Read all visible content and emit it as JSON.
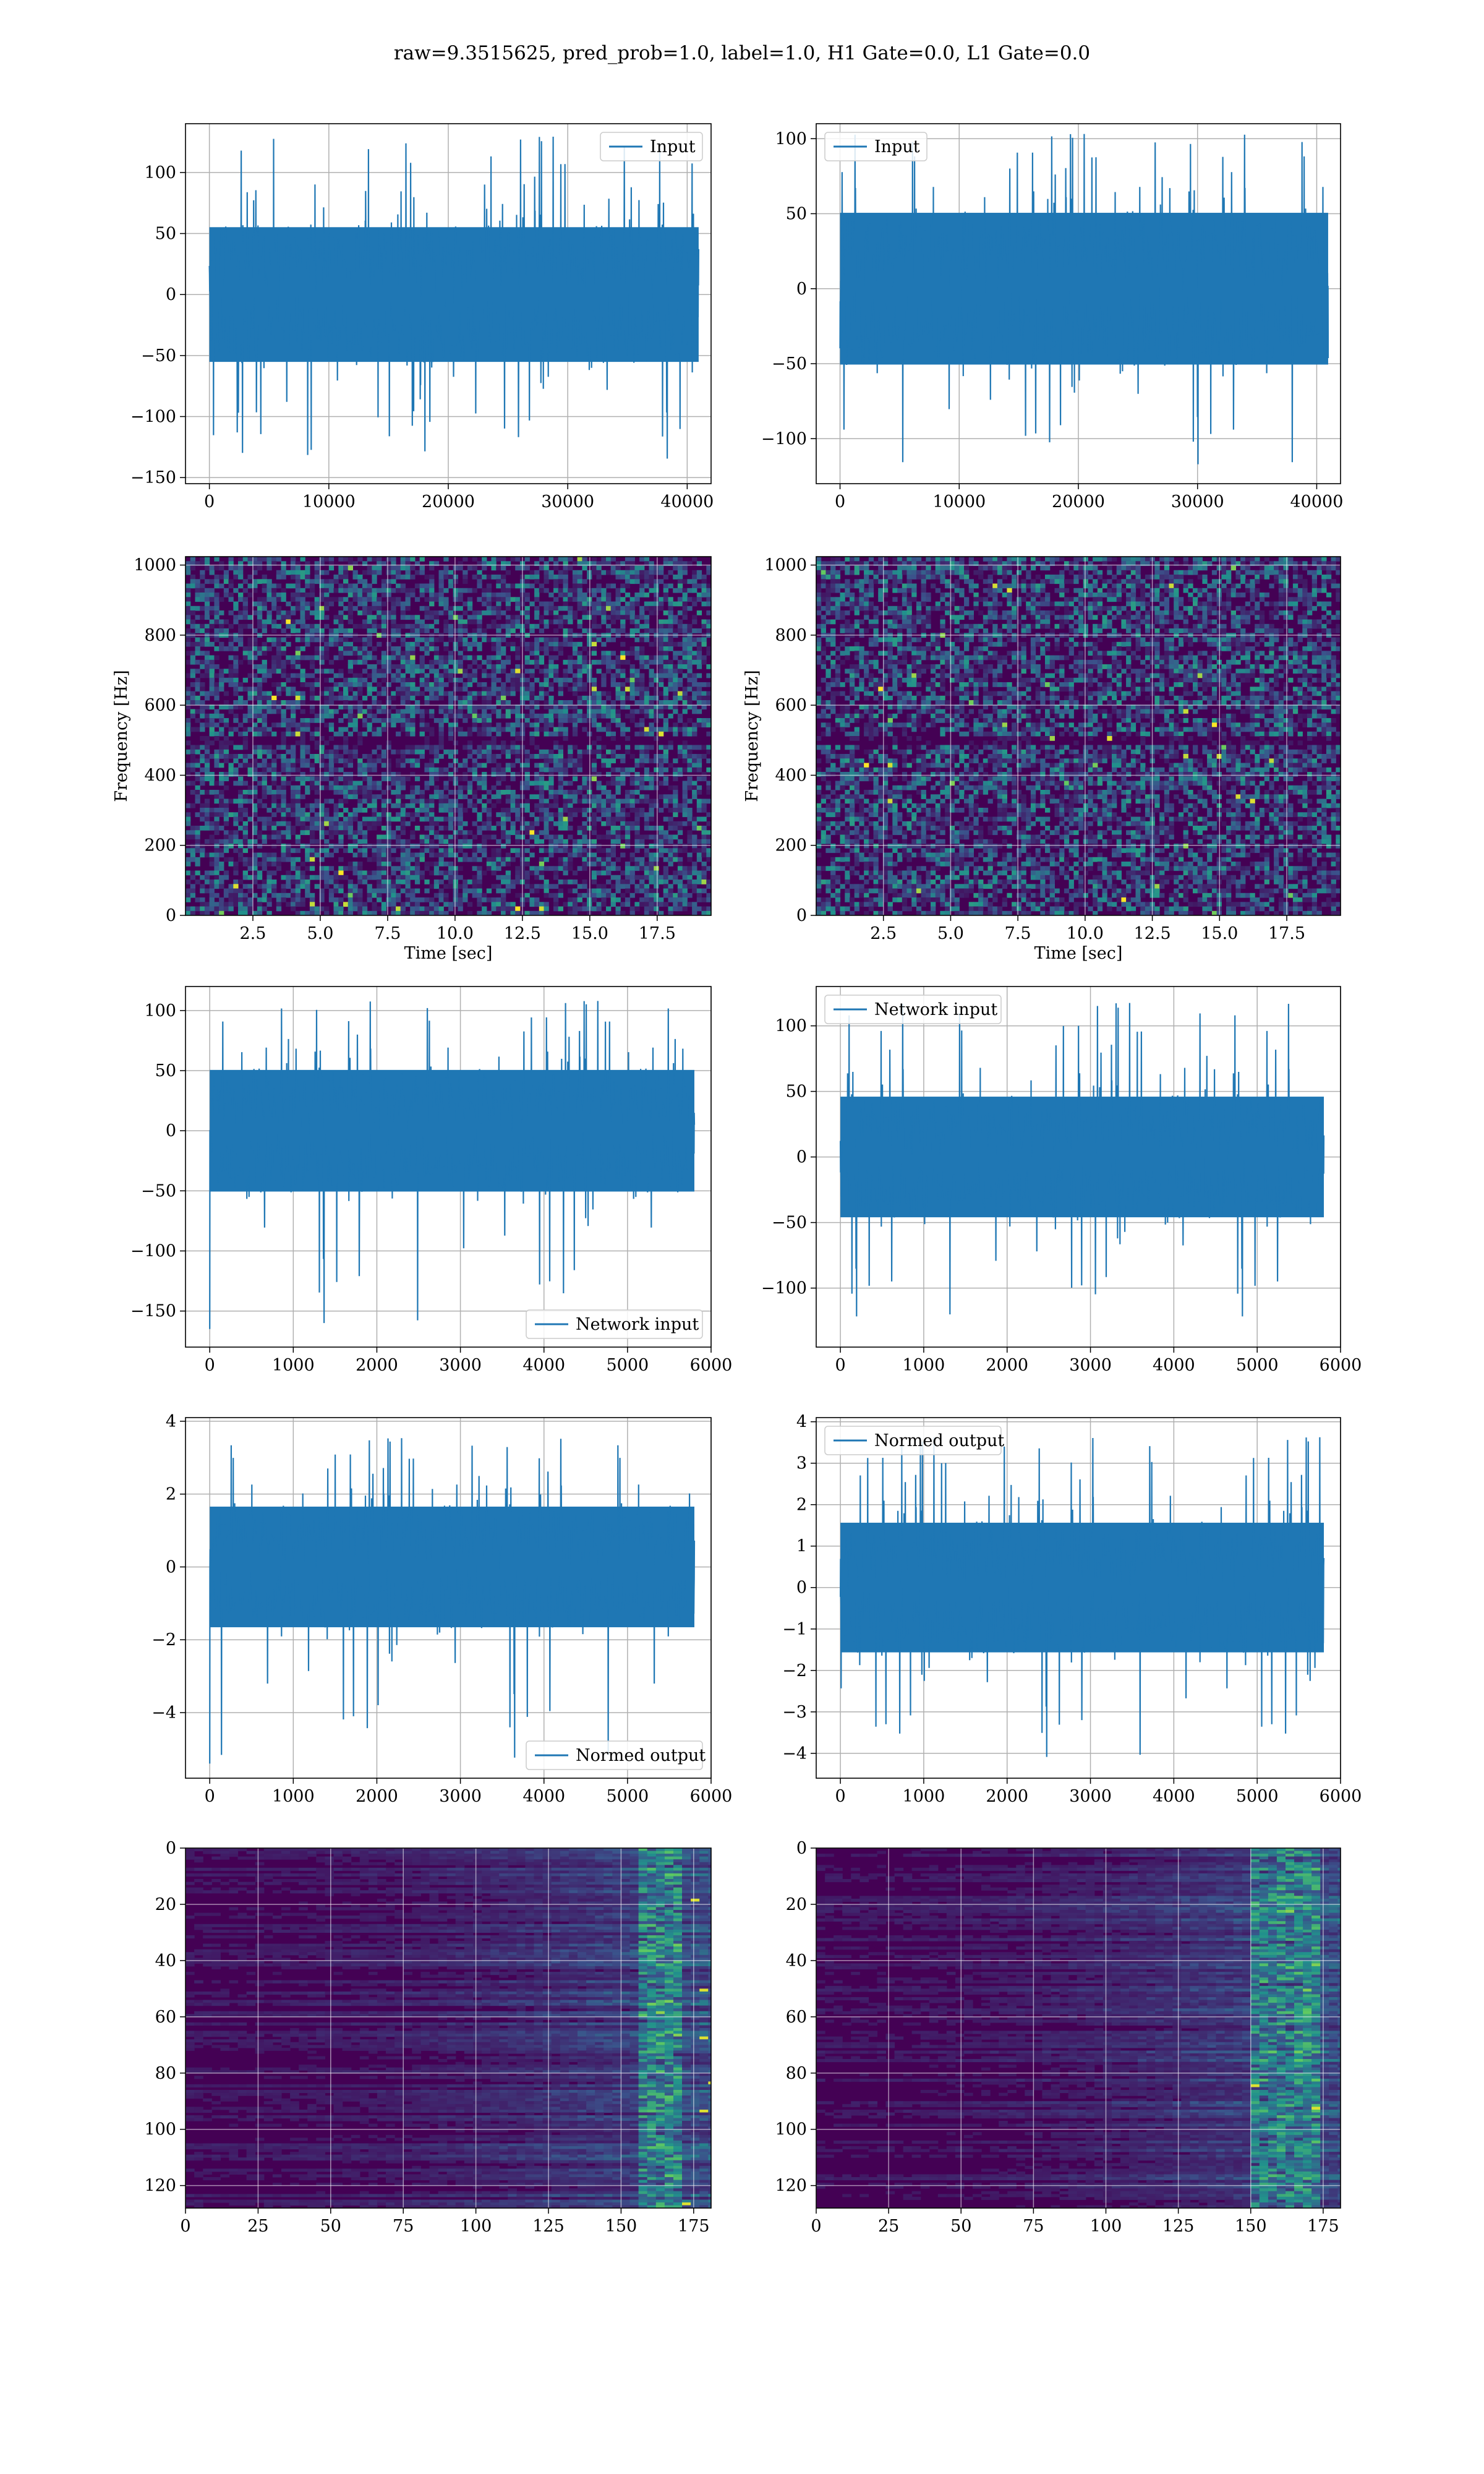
{
  "figure": {
    "suptitle": "raw=9.3515625, pred_prob=1.0, label=1.0, H1 Gate=0.0, L1 Gate=0.0"
  },
  "colors": {
    "line": "#1f77b4",
    "grid": "#b0b0b0",
    "viridis_low": "#440154",
    "viridis_mid": "#21918c",
    "viridis_high": "#fde725"
  },
  "chart_data": [
    {
      "id": "input-h1",
      "type": "line",
      "legend": "Input",
      "legend_loc": "upper right",
      "xlim": [
        -2000,
        42000
      ],
      "ylim": [
        -155,
        140
      ],
      "xticks": [
        0,
        10000,
        20000,
        30000,
        40000
      ],
      "xtick_labels": [
        "0",
        "10000",
        "20000",
        "30000",
        "40000"
      ],
      "yticks": [
        -150,
        -100,
        -50,
        0,
        50,
        100
      ],
      "ytick_labels": [
        "−150",
        "−100",
        "−50",
        "0",
        "50",
        "100"
      ],
      "x_range": [
        0,
        40960
      ],
      "band": [
        -60,
        60
      ],
      "extremes": [
        -138,
        132
      ],
      "grid": true
    },
    {
      "id": "input-l1",
      "type": "line",
      "legend": "Input",
      "legend_loc": "upper left",
      "xlim": [
        -2000,
        42000
      ],
      "ylim": [
        -130,
        110
      ],
      "xticks": [
        0,
        10000,
        20000,
        30000,
        40000
      ],
      "xtick_labels": [
        "0",
        "10000",
        "20000",
        "30000",
        "40000"
      ],
      "yticks": [
        -100,
        -50,
        0,
        50,
        100
      ],
      "ytick_labels": [
        "−100",
        "−50",
        "0",
        "50",
        "100"
      ],
      "x_range": [
        0,
        40960
      ],
      "band": [
        -55,
        55
      ],
      "extremes": [
        -120,
        105
      ],
      "grid": true
    },
    {
      "id": "spec-h1",
      "type": "heatmap",
      "ylabel": "Frequency [Hz]",
      "xlabel": "Time [sec]",
      "xlim": [
        0,
        19.5
      ],
      "ylim": [
        0,
        1024
      ],
      "xticks": [
        2.5,
        5.0,
        7.5,
        10.0,
        12.5,
        15.0,
        17.5
      ],
      "xtick_labels": [
        "2.5",
        "5.0",
        "7.5",
        "10.0",
        "12.5",
        "15.0",
        "17.5"
      ],
      "yticks": [
        0,
        200,
        400,
        600,
        800,
        1000
      ],
      "ytick_labels": [
        "0",
        "200",
        "400",
        "600",
        "800",
        "1000"
      ],
      "dark_band_hz": 500,
      "grid": true
    },
    {
      "id": "spec-l1",
      "type": "heatmap",
      "ylabel": "Frequency [Hz]",
      "xlabel": "Time [sec]",
      "xlim": [
        0,
        19.5
      ],
      "ylim": [
        0,
        1024
      ],
      "xticks": [
        2.5,
        5.0,
        7.5,
        10.0,
        12.5,
        15.0,
        17.5
      ],
      "xtick_labels": [
        "2.5",
        "5.0",
        "7.5",
        "10.0",
        "12.5",
        "15.0",
        "17.5"
      ],
      "yticks": [
        0,
        200,
        400,
        600,
        800,
        1000
      ],
      "ytick_labels": [
        "0",
        "200",
        "400",
        "600",
        "800",
        "1000"
      ],
      "dark_band_hz": 500,
      "grid": true
    },
    {
      "id": "net-h1",
      "type": "line",
      "legend": "Network input",
      "legend_loc": "lower right",
      "xlim": [
        -290,
        6000
      ],
      "ylim": [
        -180,
        120
      ],
      "xticks": [
        0,
        1000,
        2000,
        3000,
        4000,
        5000,
        6000
      ],
      "xtick_labels": [
        "0",
        "1000",
        "2000",
        "3000",
        "4000",
        "5000",
        "6000"
      ],
      "yticks": [
        -150,
        -100,
        -50,
        0,
        50,
        100
      ],
      "ytick_labels": [
        "−150",
        "−100",
        "−50",
        "0",
        "50",
        "100"
      ],
      "x_range": [
        0,
        5800
      ],
      "band": [
        -55,
        55
      ],
      "extremes": [
        -165,
        110
      ],
      "grid": true
    },
    {
      "id": "net-l1",
      "type": "line",
      "legend": "Network input",
      "legend_loc": "upper left",
      "xlim": [
        -290,
        6000
      ],
      "ylim": [
        -145,
        130
      ],
      "xticks": [
        0,
        1000,
        2000,
        3000,
        4000,
        5000,
        6000
      ],
      "xtick_labels": [
        "0",
        "1000",
        "2000",
        "3000",
        "4000",
        "5000",
        "6000"
      ],
      "yticks": [
        -100,
        -50,
        0,
        50,
        100
      ],
      "ytick_labels": [
        "−100",
        "−50",
        "0",
        "50",
        "100"
      ],
      "x_range": [
        0,
        5800
      ],
      "band": [
        -50,
        50
      ],
      "extremes": [
        -125,
        120
      ],
      "grid": true
    },
    {
      "id": "norm-h1",
      "type": "line",
      "legend": "Normed output",
      "legend_loc": "lower right",
      "xlim": [
        -290,
        6000
      ],
      "ylim": [
        -5.8,
        4.1
      ],
      "xticks": [
        0,
        1000,
        2000,
        3000,
        4000,
        5000,
        6000
      ],
      "xtick_labels": [
        "0",
        "1000",
        "2000",
        "3000",
        "4000",
        "5000",
        "6000"
      ],
      "yticks": [
        -4,
        -2,
        0,
        2,
        4
      ],
      "ytick_labels": [
        "−4",
        "−2",
        "0",
        "2",
        "4"
      ],
      "x_range": [
        0,
        5800
      ],
      "band": [
        -1.8,
        1.8
      ],
      "extremes": [
        -5.4,
        3.6
      ],
      "grid": true
    },
    {
      "id": "norm-l1",
      "type": "line",
      "legend": "Normed output",
      "legend_loc": "upper left",
      "xlim": [
        -290,
        6000
      ],
      "ylim": [
        -4.6,
        4.1
      ],
      "xticks": [
        0,
        1000,
        2000,
        3000,
        4000,
        5000,
        6000
      ],
      "xtick_labels": [
        "0",
        "1000",
        "2000",
        "3000",
        "4000",
        "5000",
        "6000"
      ],
      "yticks": [
        -4,
        -3,
        -2,
        -1,
        0,
        1,
        2,
        3,
        4
      ],
      "ytick_labels": [
        "−4",
        "−3",
        "−2",
        "−1",
        "0",
        "1",
        "2",
        "3",
        "4"
      ],
      "x_range": [
        0,
        5800
      ],
      "band": [
        -1.7,
        1.7
      ],
      "extremes": [
        -4.2,
        3.7
      ],
      "grid": true
    },
    {
      "id": "feat-h1",
      "type": "heatmap",
      "xlim": [
        0,
        181
      ],
      "ylim": [
        128,
        0
      ],
      "xticks": [
        0,
        25,
        50,
        75,
        100,
        125,
        150,
        175
      ],
      "xtick_labels": [
        "0",
        "25",
        "50",
        "75",
        "100",
        "125",
        "150",
        "175"
      ],
      "yticks": [
        0,
        20,
        40,
        60,
        80,
        100,
        120
      ],
      "ytick_labels": [
        "0",
        "20",
        "40",
        "60",
        "80",
        "100",
        "120"
      ],
      "hot_columns": [
        155,
        170
      ],
      "grid": true
    },
    {
      "id": "feat-l1",
      "type": "heatmap",
      "xlim": [
        0,
        181
      ],
      "ylim": [
        128,
        0
      ],
      "xticks": [
        0,
        25,
        50,
        75,
        100,
        125,
        150,
        175
      ],
      "xtick_labels": [
        "0",
        "25",
        "50",
        "75",
        "100",
        "125",
        "150",
        "175"
      ],
      "yticks": [
        0,
        20,
        40,
        60,
        80,
        100,
        120
      ],
      "ytick_labels": [
        "0",
        "20",
        "40",
        "60",
        "80",
        "100",
        "120"
      ],
      "hot_columns": [
        148,
        172
      ],
      "grid": true
    }
  ]
}
